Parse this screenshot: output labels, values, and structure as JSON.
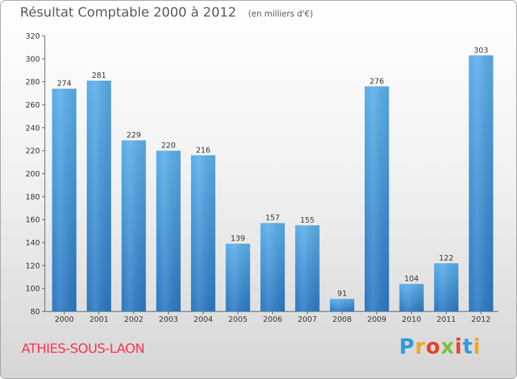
{
  "chart_data": {
    "type": "bar",
    "title": "Résultat Comptable 2000 à 2012",
    "subtitle": "(en milliers d'€)",
    "categories": [
      "2000",
      "2001",
      "2002",
      "2003",
      "2004",
      "2005",
      "2006",
      "2007",
      "2008",
      "2009",
      "2010",
      "2011",
      "2012"
    ],
    "values": [
      274,
      281,
      229,
      220,
      216,
      139,
      157,
      155,
      91,
      276,
      104,
      122,
      303
    ],
    "ylim": [
      80,
      320
    ],
    "yticks": [
      80,
      100,
      120,
      140,
      160,
      180,
      200,
      220,
      240,
      260,
      280,
      300,
      320
    ],
    "xlabel": "",
    "ylabel": "",
    "grid": false,
    "bar_color": "#3a8fd8"
  },
  "footer": {
    "town": "ATHIES-SOUS-LAON",
    "brand_letters": [
      "P",
      "r",
      "o",
      "x",
      "i",
      "t",
      "i"
    ],
    "brand_colors": [
      "#2e9be0",
      "#f5a623",
      "#e5432b",
      "#7ac143",
      "#e5432b",
      "#2e9be0",
      "#f5a623"
    ]
  }
}
